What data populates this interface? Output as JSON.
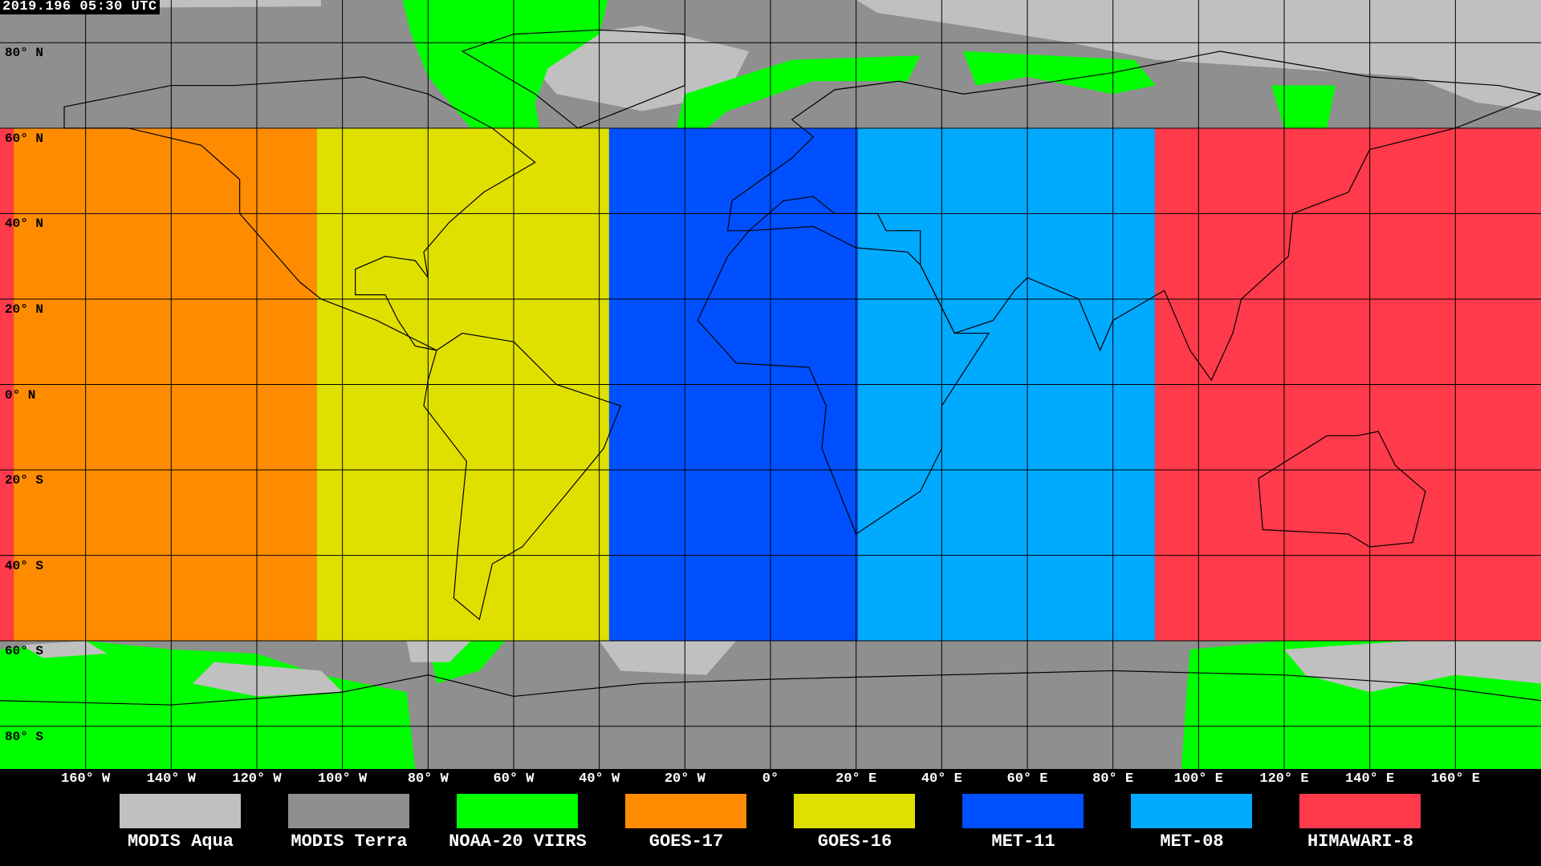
{
  "title": "2019.196 05:30 UTC",
  "lat_labels": [
    {
      "lat": 80,
      "label": "80° N"
    },
    {
      "lat": 60,
      "label": "60° N"
    },
    {
      "lat": 40,
      "label": "40° N"
    },
    {
      "lat": 20,
      "label": "20° N"
    },
    {
      "lat": 0,
      "label": "0° N"
    },
    {
      "lat": -20,
      "label": "20° S"
    },
    {
      "lat": -40,
      "label": "40° S"
    },
    {
      "lat": -60,
      "label": "60° S"
    },
    {
      "lat": -80,
      "label": "80° S"
    }
  ],
  "lon_labels": [
    {
      "lon": -160,
      "label": "160° W"
    },
    {
      "lon": -140,
      "label": "140° W"
    },
    {
      "lon": -120,
      "label": "120° W"
    },
    {
      "lon": -100,
      "label": "100° W"
    },
    {
      "lon": -80,
      "label": "80° W"
    },
    {
      "lon": -60,
      "label": "60° W"
    },
    {
      "lon": -40,
      "label": "40° W"
    },
    {
      "lon": -20,
      "label": "20° W"
    },
    {
      "lon": 0,
      "label": "0°"
    },
    {
      "lon": 20,
      "label": "20° E"
    },
    {
      "lon": 40,
      "label": "40° E"
    },
    {
      "lon": 60,
      "label": "60° E"
    },
    {
      "lon": 80,
      "label": "80° E"
    },
    {
      "lon": 100,
      "label": "100° E"
    },
    {
      "lon": 120,
      "label": "120° E"
    },
    {
      "lon": 140,
      "label": "140° E"
    },
    {
      "lon": 160,
      "label": "160° E"
    }
  ],
  "legend": [
    {
      "label": "MODIS Aqua",
      "color": "#c0c0c0"
    },
    {
      "label": "MODIS Terra",
      "color": "#8f8f8f"
    },
    {
      "label": "NOAA-20 VIIRS",
      "color": "#00ff00"
    },
    {
      "label": "GOES-17",
      "color": "#ff8c00"
    },
    {
      "label": "GOES-16",
      "color": "#e0e000"
    },
    {
      "label": "MET-11",
      "color": "#0050ff"
    },
    {
      "label": "MET-08",
      "color": "#00aaff"
    },
    {
      "label": "HIMAWARI-8",
      "color": "#ff3a4a"
    }
  ],
  "geostationary_coverage": {
    "lat_range": [
      -60,
      60
    ],
    "regions": [
      {
        "sat": "HIMAWARI-8",
        "lon_range": [
          -180,
          -176.8
        ],
        "color": "#ff3a4a"
      },
      {
        "sat": "GOES-17",
        "lon_range": [
          -176.8,
          -106
        ],
        "color": "#ff8c00"
      },
      {
        "sat": "GOES-16",
        "lon_range": [
          -106,
          -37.7
        ],
        "color": "#e0e000"
      },
      {
        "sat": "MET-11",
        "lon_range": [
          -37.7,
          20.4
        ],
        "color": "#0050ff"
      },
      {
        "sat": "MET-08",
        "lon_range": [
          20.4,
          89.8
        ],
        "color": "#00aaff"
      },
      {
        "sat": "HIMAWARI-8",
        "lon_range": [
          89.8,
          180
        ],
        "color": "#ff3a4a"
      }
    ]
  }
}
